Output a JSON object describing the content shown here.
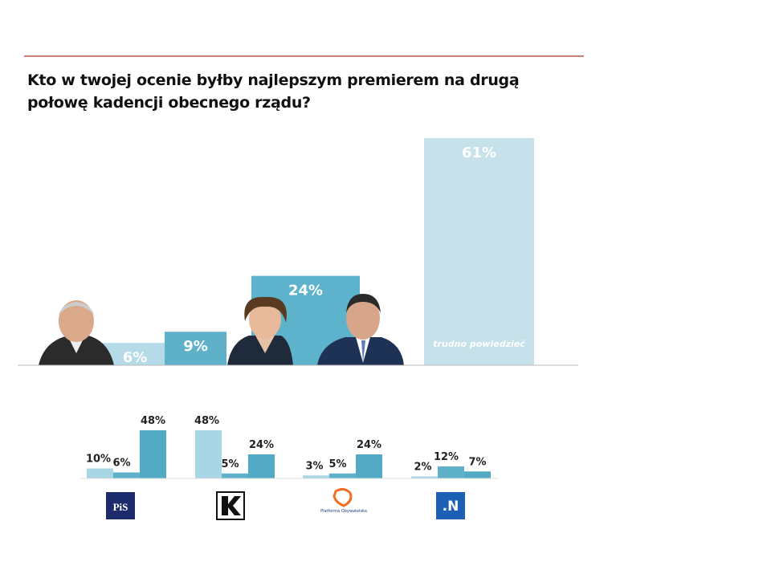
{
  "chart_data": [
    {
      "type": "bar",
      "title": "Kto w twojej ocenie byłby najlepszym premierem na drugą połowę kadencji obecnego rządu?",
      "categories": [
        null,
        null,
        null,
        "trudno powiedzieć"
      ],
      "values": [
        6,
        9,
        24,
        61
      ],
      "value_labels": [
        "6%",
        "9%",
        "24%",
        "61%"
      ],
      "colors": [
        "#b4dbe7",
        "#5fb1c9",
        "#5db3cc",
        "#c6e1ea"
      ]
    },
    {
      "type": "grouped-bar",
      "categories": [
        "PiS",
        null,
        "Platforma Obywatelska",
        ".N"
      ],
      "series": [
        {
          "color": "#a9d6e4",
          "values": [
            10,
            48,
            3,
            2
          ],
          "value_labels": [
            "10%",
            "48%",
            "3%",
            "2%"
          ]
        },
        {
          "color": "#5fb1c9",
          "values": [
            6,
            5,
            5,
            12
          ],
          "value_labels": [
            "6%",
            "5%",
            "5%",
            "12%"
          ]
        },
        {
          "color": "#52aac5",
          "values": [
            48,
            24,
            24,
            7
          ],
          "value_labels": [
            "48%",
            "24%",
            "24%",
            "7%"
          ]
        }
      ]
    }
  ]
}
